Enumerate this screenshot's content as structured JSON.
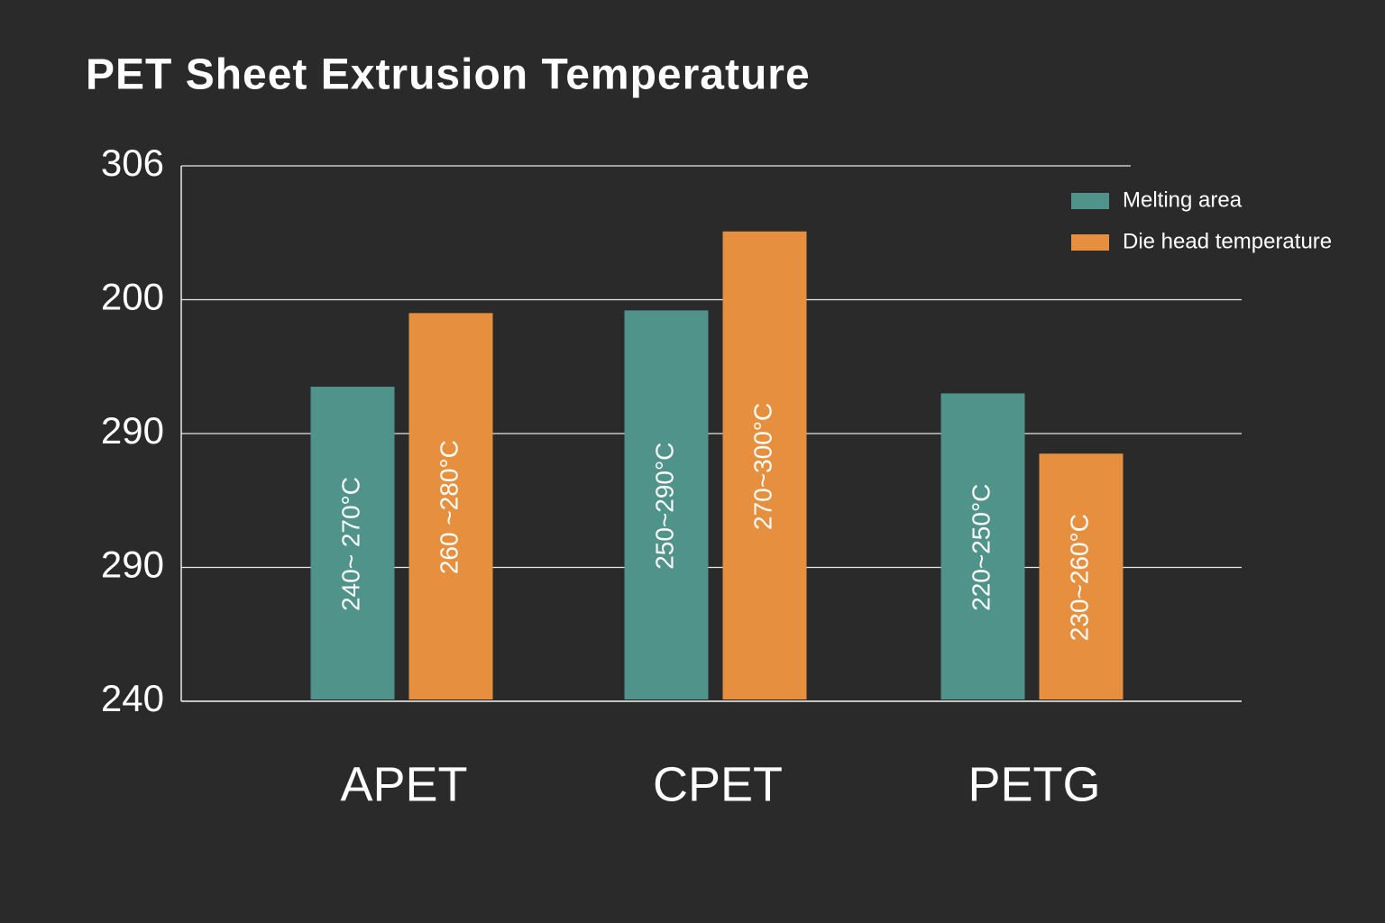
{
  "chart_data": {
    "type": "bar",
    "title": "PET Sheet Extrusion Temperature",
    "categories": [
      "APET",
      "CPET",
      "PETG"
    ],
    "series": [
      {
        "name": "Melting area",
        "color": "#4f938a",
        "values": [
          2.35,
          2.92,
          2.3
        ],
        "bar_labels": [
          "240~ 270°C",
          "250~290°C",
          "220~250°C"
        ]
      },
      {
        "name": "Die head temperature",
        "color": "#e68f3e",
        "values": [
          2.9,
          3.51,
          1.85
        ],
        "bar_labels": [
          "260 ~280°C",
          "270~300°C",
          "230~260°C"
        ]
      }
    ],
    "ylim": [
      0,
      4
    ],
    "yticks": [
      {
        "value": 0,
        "label": "240"
      },
      {
        "value": 1,
        "label": "290"
      },
      {
        "value": 2,
        "label": "290"
      },
      {
        "value": 3,
        "label": "200"
      },
      {
        "value": 4,
        "label": "306"
      }
    ],
    "grid": true,
    "legend": "top-right"
  }
}
